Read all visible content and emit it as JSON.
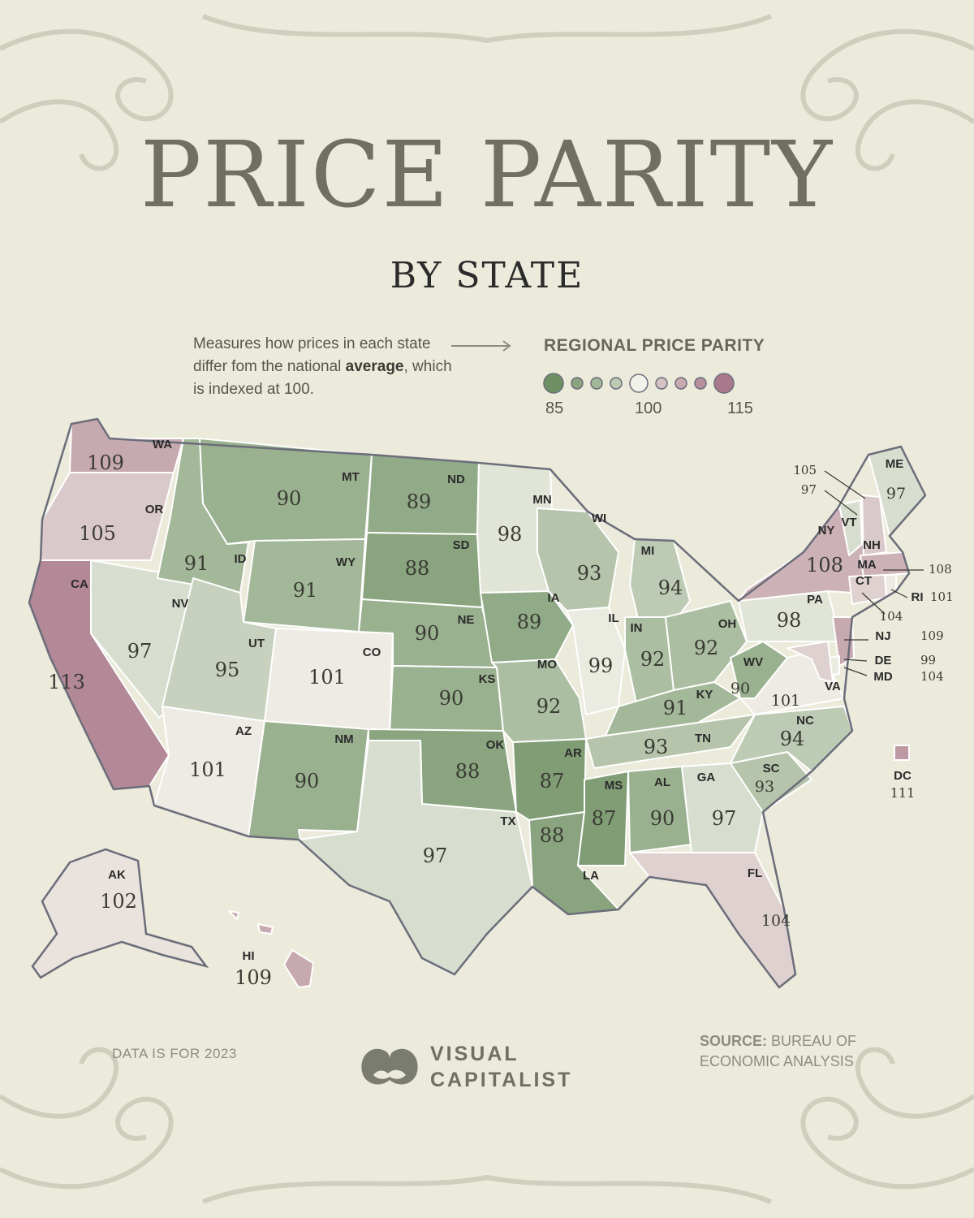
{
  "title": "PRICE PARITY",
  "subtitle": "BY STATE",
  "description": {
    "part1": "Measures how prices in each state differ fom the national",
    "bold": "average",
    "part2": ", which is indexed at 100."
  },
  "legend": {
    "title": "REGIONAL PRICE PARITY",
    "min_label": "85",
    "mid_label": "100",
    "max_label": "115",
    "steps": [
      85,
      88,
      91,
      94,
      100,
      106,
      109,
      112,
      115
    ]
  },
  "colors": {
    "low": "#6e9063",
    "neutral": "#f3f2ea",
    "high": "#a9788a",
    "background": "#ebeadb",
    "border": "#ffffff",
    "outline": "#6b6d7a"
  },
  "chart_data": {
    "type": "choropleth",
    "metric": "Regional Price Parity",
    "scale": [
      85,
      100,
      115
    ],
    "states": [
      {
        "abbr": "WA",
        "value": 109
      },
      {
        "abbr": "OR",
        "value": 105
      },
      {
        "abbr": "CA",
        "value": 113
      },
      {
        "abbr": "NV",
        "value": 97
      },
      {
        "abbr": "ID",
        "value": 91
      },
      {
        "abbr": "MT",
        "value": 90
      },
      {
        "abbr": "WY",
        "value": 91
      },
      {
        "abbr": "UT",
        "value": 95
      },
      {
        "abbr": "CO",
        "value": 101
      },
      {
        "abbr": "AZ",
        "value": 101
      },
      {
        "abbr": "NM",
        "value": 90
      },
      {
        "abbr": "ND",
        "value": 89
      },
      {
        "abbr": "SD",
        "value": 88
      },
      {
        "abbr": "NE",
        "value": 90
      },
      {
        "abbr": "KS",
        "value": 90
      },
      {
        "abbr": "OK",
        "value": 88
      },
      {
        "abbr": "TX",
        "value": 97
      },
      {
        "abbr": "MN",
        "value": 98
      },
      {
        "abbr": "IA",
        "value": 89
      },
      {
        "abbr": "MO",
        "value": 92
      },
      {
        "abbr": "AR",
        "value": 87
      },
      {
        "abbr": "LA",
        "value": 88
      },
      {
        "abbr": "WI",
        "value": 93
      },
      {
        "abbr": "IL",
        "value": 99
      },
      {
        "abbr": "MI",
        "value": 94
      },
      {
        "abbr": "IN",
        "value": 92
      },
      {
        "abbr": "OH",
        "value": 92
      },
      {
        "abbr": "KY",
        "value": 91
      },
      {
        "abbr": "TN",
        "value": 93
      },
      {
        "abbr": "MS",
        "value": 87
      },
      {
        "abbr": "AL",
        "value": 90
      },
      {
        "abbr": "GA",
        "value": 97
      },
      {
        "abbr": "FL",
        "value": 104
      },
      {
        "abbr": "SC",
        "value": 93
      },
      {
        "abbr": "NC",
        "value": 94
      },
      {
        "abbr": "VA",
        "value": 101
      },
      {
        "abbr": "WV",
        "value": 90
      },
      {
        "abbr": "PA",
        "value": 98
      },
      {
        "abbr": "NY",
        "value": 108
      },
      {
        "abbr": "VT",
        "value": 97
      },
      {
        "abbr": "NH",
        "value": 105
      },
      {
        "abbr": "ME",
        "value": 97
      },
      {
        "abbr": "MA",
        "value": 108
      },
      {
        "abbr": "RI",
        "value": 101
      },
      {
        "abbr": "CT",
        "value": 104
      },
      {
        "abbr": "NJ",
        "value": 109
      },
      {
        "abbr": "DE",
        "value": 99
      },
      {
        "abbr": "MD",
        "value": 104
      },
      {
        "abbr": "DC",
        "value": 111
      },
      {
        "abbr": "AK",
        "value": 102
      },
      {
        "abbr": "HI",
        "value": 109
      }
    ]
  },
  "footer": {
    "data_note": "DATA IS FOR 2023",
    "brand_line1": "VISUAL",
    "brand_line2": "CAPITALIST",
    "source_label": "SOURCE:",
    "source_text": "BUREAU OF ECONOMIC ANALYSIS"
  }
}
